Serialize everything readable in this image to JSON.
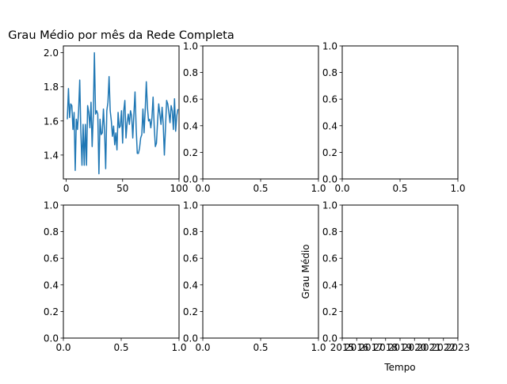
{
  "chart_data": [
    {
      "type": "line",
      "title": "Grau Médio por mês da Rede Completa",
      "xlabel": "",
      "ylabel": "",
      "xlim": [
        -2.5,
        100
      ],
      "ylim": [
        1.26,
        2.04
      ],
      "xticks": [
        "0",
        "50",
        "100"
      ],
      "yticks": [
        "1.4",
        "1.6",
        "1.8",
        "2.0"
      ],
      "grid": false,
      "series": [
        {
          "color": "#1f77b4",
          "x": [
            1,
            2,
            3,
            4,
            5,
            6,
            7,
            8,
            9,
            10,
            11,
            12,
            13,
            14,
            15,
            16,
            17,
            18,
            19,
            20,
            21,
            22,
            23,
            24,
            25,
            26,
            27,
            28,
            29,
            30,
            31,
            32,
            33,
            34,
            35,
            36,
            37,
            38,
            39,
            40,
            41,
            42,
            43,
            44,
            45,
            46,
            47,
            48,
            49,
            50,
            51,
            52,
            53,
            54,
            55,
            56,
            57,
            58,
            59,
            60,
            61,
            62,
            63,
            64,
            65,
            66,
            67,
            68,
            69,
            70,
            71,
            72,
            73,
            74,
            75,
            76,
            77,
            78,
            79,
            80,
            81,
            82,
            83,
            84,
            85,
            86,
            87,
            88,
            89,
            90,
            91,
            92,
            93,
            94,
            95,
            96,
            97,
            98,
            99
          ],
          "y": [
            1.61,
            1.79,
            1.62,
            1.7,
            1.69,
            1.55,
            1.65,
            1.31,
            1.61,
            1.55,
            1.66,
            1.84,
            1.53,
            1.34,
            1.58,
            1.34,
            1.58,
            1.34,
            1.69,
            1.65,
            1.56,
            1.71,
            1.45,
            1.63,
            2.0,
            1.64,
            1.66,
            1.64,
            1.29,
            1.61,
            1.52,
            1.53,
            1.67,
            1.54,
            1.32,
            1.66,
            1.71,
            1.86,
            1.66,
            1.6,
            1.51,
            1.57,
            1.46,
            1.53,
            1.43,
            1.65,
            1.56,
            1.57,
            1.66,
            1.47,
            1.66,
            1.72,
            1.5,
            1.59,
            1.64,
            1.58,
            1.66,
            1.63,
            1.5,
            1.64,
            1.77,
            1.56,
            1.41,
            1.41,
            1.44,
            1.5,
            1.52,
            1.67,
            1.53,
            1.66,
            1.83,
            1.68,
            1.6,
            1.61,
            1.56,
            1.62,
            1.74,
            1.57,
            1.45,
            1.47,
            1.6,
            1.7,
            1.64,
            1.58,
            1.68,
            1.58,
            1.4,
            1.56,
            1.72,
            1.7,
            1.65,
            1.59,
            1.69,
            1.66,
            1.55,
            1.73,
            1.54,
            1.63,
            1.67
          ]
        }
      ]
    },
    {
      "type": "line",
      "title": "",
      "xlim": [
        0,
        1
      ],
      "ylim": [
        0,
        1
      ],
      "xticks": [
        "0.0",
        "0.5",
        "1.0"
      ],
      "yticks": [
        "0.0",
        "0.2",
        "0.4",
        "0.6",
        "0.8",
        "1.0"
      ],
      "series": []
    },
    {
      "type": "line",
      "title": "",
      "xlim": [
        0,
        1
      ],
      "ylim": [
        0,
        1
      ],
      "xticks": [
        "0.0",
        "0.5",
        "1.0"
      ],
      "yticks": [
        "0.0",
        "0.2",
        "0.4",
        "0.6",
        "0.8",
        "1.0"
      ],
      "series": []
    },
    {
      "type": "line",
      "title": "",
      "xlim": [
        0,
        1
      ],
      "ylim": [
        0,
        1
      ],
      "xticks": [
        "0.0",
        "0.5",
        "1.0"
      ],
      "yticks": [
        "0.0",
        "0.2",
        "0.4",
        "0.6",
        "0.8",
        "1.0"
      ],
      "series": []
    },
    {
      "type": "line",
      "title": "",
      "xlim": [
        0,
        1
      ],
      "ylim": [
        0,
        1
      ],
      "xticks": [
        "0.0",
        "0.5",
        "1.0"
      ],
      "yticks": [
        "0.0",
        "0.2",
        "0.4",
        "0.6",
        "0.8",
        "1.0"
      ],
      "series": []
    },
    {
      "type": "line",
      "title": "",
      "xlabel": "Tempo",
      "ylabel": "Grau Médio",
      "xlim": [
        2015,
        2023
      ],
      "ylim": [
        0,
        1
      ],
      "xticks": [
        "2015",
        "2016",
        "2017",
        "2018",
        "2019",
        "2020",
        "2021",
        "2022",
        "2023"
      ],
      "yticks": [
        "0.0",
        "0.2",
        "0.4",
        "0.6",
        "0.8",
        "1.0"
      ],
      "series": []
    }
  ]
}
